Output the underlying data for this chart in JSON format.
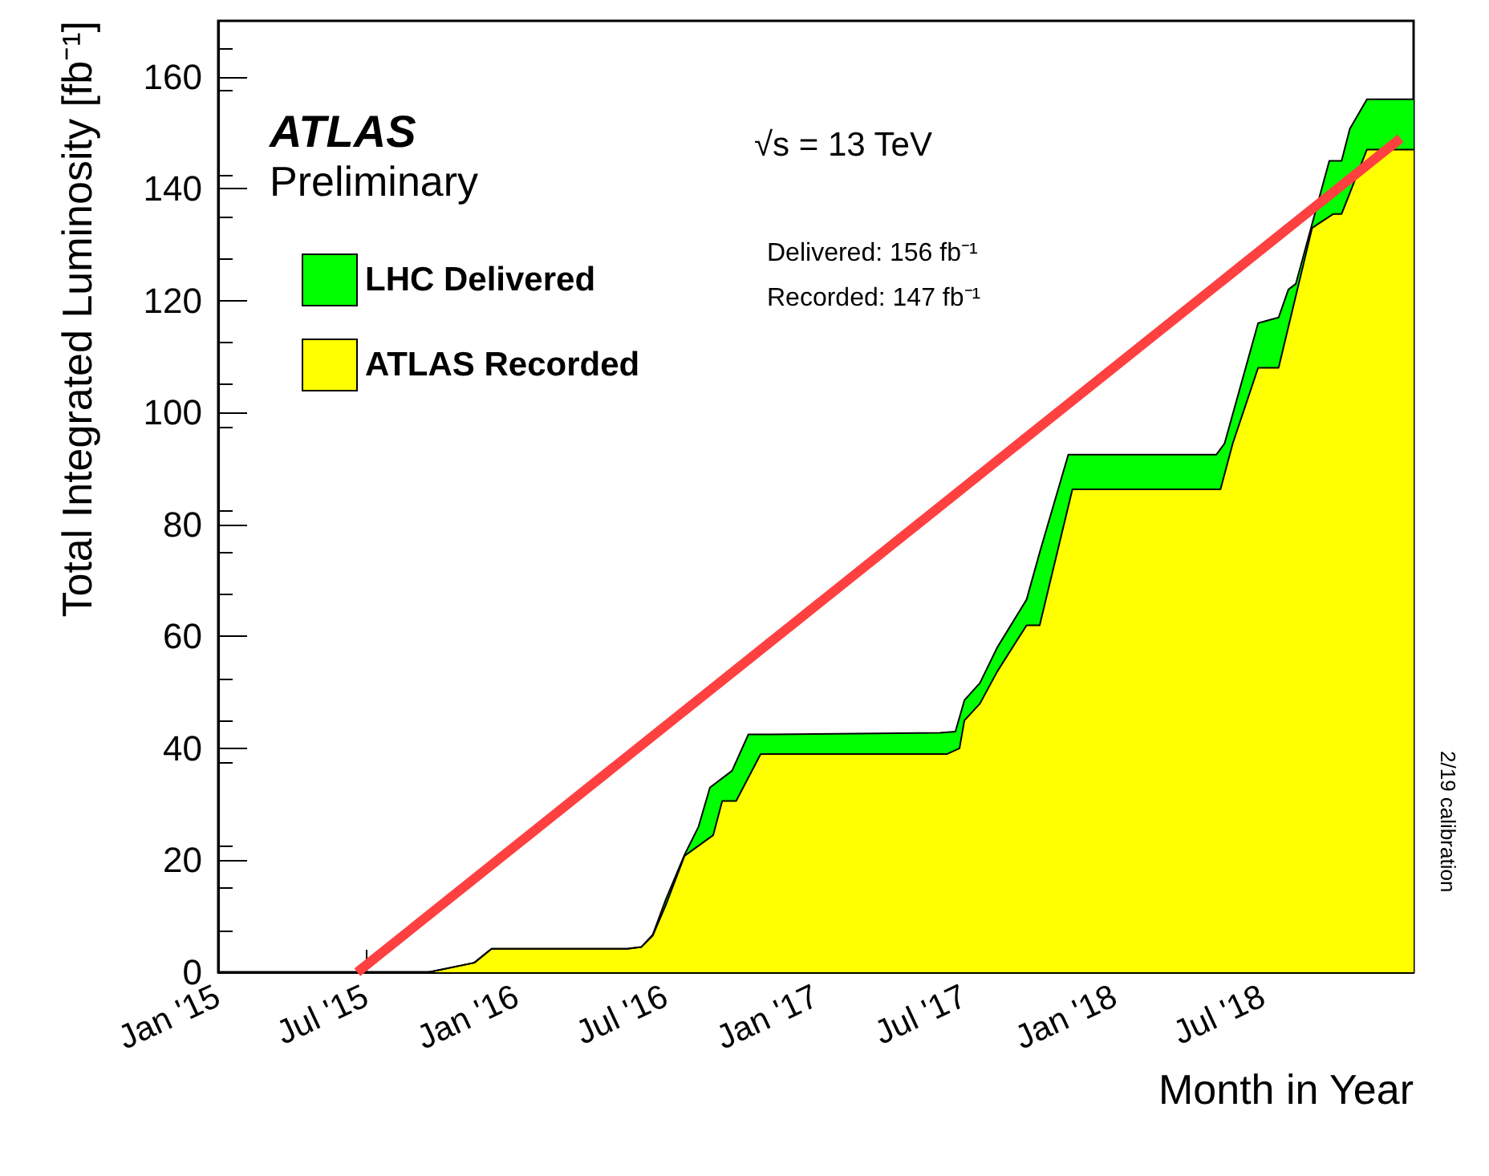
{
  "chart_data": {
    "type": "area",
    "xlabel": "Month in Year",
    "ylabel": "Total Integrated Luminosity [fb⁻¹]",
    "xlim": [
      "2015-01-01",
      "2019-01-01"
    ],
    "xticks": [
      {
        "value": "2015-01-01",
        "label": "Jan '15"
      },
      {
        "value": "2015-07-01",
        "label": "Jul '15"
      },
      {
        "value": "2016-01-01",
        "label": "Jan '16"
      },
      {
        "value": "2016-07-01",
        "label": "Jul '16"
      },
      {
        "value": "2017-01-01",
        "label": "Jan '17"
      },
      {
        "value": "2017-07-01",
        "label": "Jul '17"
      },
      {
        "value": "2018-01-01",
        "label": "Jan '18"
      },
      {
        "value": "2018-07-01",
        "label": "Jul '18"
      }
    ],
    "ylim": [
      0,
      170
    ],
    "yticks": [
      0,
      20,
      40,
      60,
      80,
      100,
      120,
      140,
      160
    ],
    "grid": false,
    "legend": "top left",
    "annotations": [
      "ATLAS",
      "Preliminary",
      "√s = 13 TeV",
      "Delivered: 156 fb⁻¹",
      "Recorded: 147 fb⁻¹",
      "2/19 calibration"
    ],
    "series": [
      {
        "name": "LHC Delivered",
        "color": "#00ff00",
        "x": [
          "2015-01-01",
          "2015-09-15",
          "2015-11-10",
          "2015-12-01",
          "2016-05-15",
          "2016-06-01",
          "2016-06-15",
          "2016-07-01",
          "2016-07-24",
          "2016-08-10",
          "2016-08-24",
          "2016-09-20",
          "2016-10-10",
          "2016-11-05",
          "2017-06-01",
          "2017-06-20",
          "2017-07-01",
          "2017-07-20",
          "2017-08-10",
          "2017-09-15",
          "2017-10-01",
          "2017-11-05",
          "2018-05-05",
          "2018-05-15",
          "2018-06-25",
          "2018-07-20",
          "2018-08-01",
          "2018-08-10",
          "2018-09-20",
          "2018-10-05",
          "2018-10-15",
          "2018-11-05",
          "2019-01-01"
        ],
        "values": [
          0,
          0,
          1.7,
          4.2,
          4.2,
          4.5,
          6.7,
          13,
          21,
          26,
          33,
          36,
          42.5,
          42.5,
          42.8,
          43,
          48.6,
          51.7,
          58,
          66.6,
          75,
          92.5,
          92.5,
          94.5,
          116,
          117,
          122,
          123,
          145,
          145,
          150.7,
          156,
          156
        ]
      },
      {
        "name": "ATLAS Recorded",
        "color": "#ffff00",
        "x": [
          "2015-01-01",
          "2015-09-15",
          "2015-11-10",
          "2015-12-01",
          "2016-05-15",
          "2016-06-01",
          "2016-06-15",
          "2016-07-01",
          "2016-07-24",
          "2016-08-28",
          "2016-09-08",
          "2016-09-25",
          "2016-10-25",
          "2017-06-10",
          "2017-06-25",
          "2017-07-01",
          "2017-07-20",
          "2017-08-10",
          "2017-09-15",
          "2017-10-01",
          "2017-11-10",
          "2018-05-10",
          "2018-05-25",
          "2018-06-25",
          "2018-07-20",
          "2018-08-30",
          "2018-09-25",
          "2018-10-05",
          "2018-11-05",
          "2019-01-01"
        ],
        "values": [
          0,
          0,
          1.7,
          4.2,
          4.2,
          4.5,
          6.5,
          12,
          20.8,
          24.5,
          30.6,
          30.6,
          39,
          39,
          40,
          45,
          48,
          53.7,
          62,
          62,
          86.3,
          86.3,
          94.5,
          108,
          108,
          133,
          135.5,
          135.5,
          147,
          147
        ]
      },
      {
        "type": "line",
        "color": "#ff4040",
        "x": [
          "2015-06-20",
          "2018-12-16"
        ],
        "values": [
          0,
          149
        ]
      }
    ]
  }
}
